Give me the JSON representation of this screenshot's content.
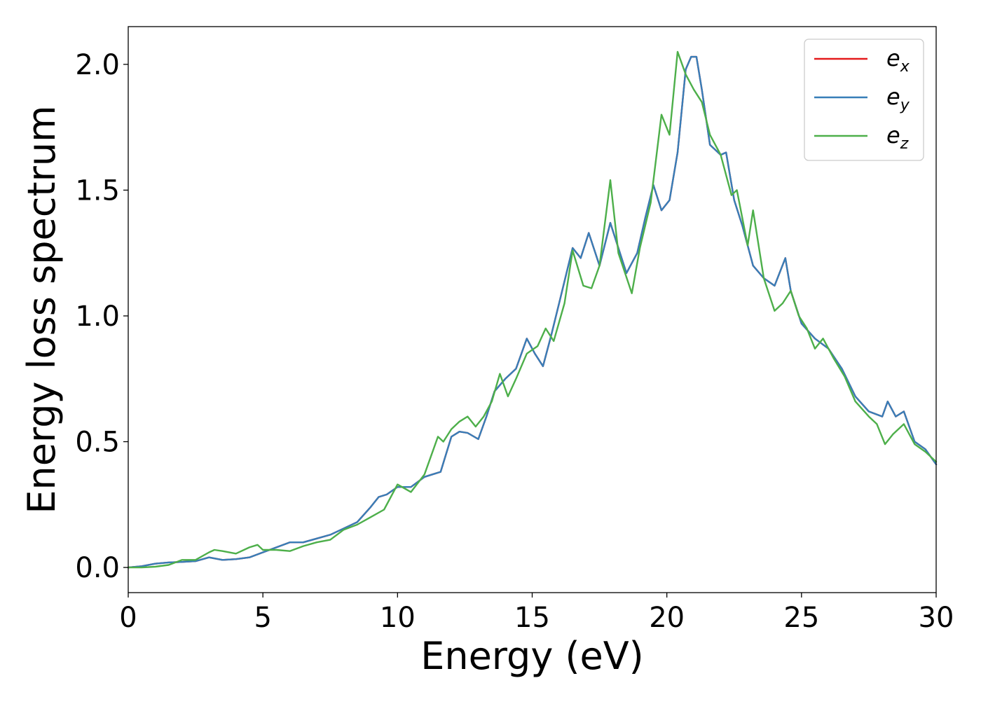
{
  "chart_data": {
    "type": "line",
    "title": "",
    "xlabel": "Energy (eV)",
    "ylabel": "Energy loss spectrum",
    "xlim": [
      0,
      30
    ],
    "ylim": [
      -0.1,
      2.15
    ],
    "xticks": [
      0,
      5,
      10,
      15,
      20,
      25,
      30
    ],
    "yticks": [
      0.0,
      0.5,
      1.0,
      1.5,
      2.0
    ],
    "xtick_labels": [
      "0",
      "5",
      "10",
      "15",
      "20",
      "25",
      "30"
    ],
    "ytick_labels": [
      "0.0",
      "0.5",
      "1.0",
      "1.5",
      "2.0"
    ],
    "grid": false,
    "legend_position": "top-right",
    "series": [
      {
        "name": "e_x",
        "legend_base": "e",
        "legend_sub": "x",
        "color": "#e41a1c",
        "x": [
          0,
          0.5,
          1,
          1.5,
          2,
          2.5,
          3,
          3.5,
          4,
          4.5,
          5,
          5.5,
          6,
          6.5,
          7,
          7.5,
          8,
          8.5,
          9,
          9.3,
          9.6,
          10,
          10.5,
          11,
          11.3,
          11.6,
          12,
          12.3,
          12.6,
          13,
          13.3,
          13.6,
          14,
          14.4,
          14.8,
          15.1,
          15.4,
          15.7,
          16,
          16.5,
          16.8,
          17.1,
          17.5,
          17.9,
          18.5,
          18.9,
          19.2,
          19.5,
          19.8,
          20.1,
          20.4,
          20.7,
          20.9,
          21.1,
          21.3,
          21.6,
          22,
          22.2,
          22.5,
          22.8,
          23.2,
          23.6,
          24,
          24.4,
          24.6,
          25,
          25.5,
          26,
          26.5,
          27,
          27.5,
          28,
          28.2,
          28.5,
          28.8,
          29.2,
          29.6,
          30
        ],
        "values": [
          0.0,
          0.005,
          0.015,
          0.02,
          0.022,
          0.025,
          0.04,
          0.03,
          0.033,
          0.04,
          0.06,
          0.08,
          0.1,
          0.1,
          0.115,
          0.13,
          0.155,
          0.18,
          0.24,
          0.28,
          0.29,
          0.32,
          0.32,
          0.36,
          0.37,
          0.38,
          0.52,
          0.54,
          0.535,
          0.51,
          0.6,
          0.7,
          0.75,
          0.79,
          0.91,
          0.85,
          0.8,
          0.92,
          1.05,
          1.27,
          1.23,
          1.33,
          1.2,
          1.37,
          1.17,
          1.25,
          1.39,
          1.52,
          1.42,
          1.46,
          1.65,
          1.98,
          2.03,
          2.03,
          1.9,
          1.68,
          1.64,
          1.65,
          1.46,
          1.36,
          1.2,
          1.15,
          1.12,
          1.23,
          1.1,
          0.97,
          0.91,
          0.87,
          0.79,
          0.68,
          0.62,
          0.6,
          0.66,
          0.6,
          0.62,
          0.5,
          0.47,
          0.41
        ]
      },
      {
        "name": "e_y",
        "legend_base": "e",
        "legend_sub": "y",
        "color": "#377eb8",
        "x": [
          0,
          0.5,
          1,
          1.5,
          2,
          2.5,
          3,
          3.5,
          4,
          4.5,
          5,
          5.5,
          6,
          6.5,
          7,
          7.5,
          8,
          8.5,
          9,
          9.3,
          9.6,
          10,
          10.5,
          11,
          11.3,
          11.6,
          12,
          12.3,
          12.6,
          13,
          13.3,
          13.6,
          14,
          14.4,
          14.8,
          15.1,
          15.4,
          15.7,
          16,
          16.5,
          16.8,
          17.1,
          17.5,
          17.9,
          18.5,
          18.9,
          19.2,
          19.5,
          19.8,
          20.1,
          20.4,
          20.7,
          20.9,
          21.1,
          21.3,
          21.6,
          22,
          22.2,
          22.5,
          22.8,
          23.2,
          23.6,
          24,
          24.4,
          24.6,
          25,
          25.5,
          26,
          26.5,
          27,
          27.5,
          28,
          28.2,
          28.5,
          28.8,
          29.2,
          29.6,
          30
        ],
        "values": [
          0.0,
          0.005,
          0.015,
          0.02,
          0.022,
          0.025,
          0.04,
          0.03,
          0.033,
          0.04,
          0.06,
          0.08,
          0.1,
          0.1,
          0.115,
          0.13,
          0.155,
          0.18,
          0.24,
          0.28,
          0.29,
          0.32,
          0.32,
          0.36,
          0.37,
          0.38,
          0.52,
          0.54,
          0.535,
          0.51,
          0.6,
          0.7,
          0.75,
          0.79,
          0.91,
          0.85,
          0.8,
          0.92,
          1.05,
          1.27,
          1.23,
          1.33,
          1.2,
          1.37,
          1.17,
          1.25,
          1.39,
          1.52,
          1.42,
          1.46,
          1.65,
          1.98,
          2.03,
          2.03,
          1.9,
          1.68,
          1.64,
          1.65,
          1.46,
          1.36,
          1.2,
          1.15,
          1.12,
          1.23,
          1.1,
          0.97,
          0.91,
          0.87,
          0.79,
          0.68,
          0.62,
          0.6,
          0.66,
          0.6,
          0.62,
          0.5,
          0.47,
          0.41
        ]
      },
      {
        "name": "e_z",
        "legend_base": "e",
        "legend_sub": "z",
        "color": "#4daf4a",
        "x": [
          0,
          0.5,
          1,
          1.5,
          2,
          2.5,
          3,
          3.2,
          3.5,
          4,
          4.5,
          4.8,
          5,
          5.5,
          6,
          6.5,
          7,
          7.5,
          8,
          8.5,
          9,
          9.5,
          10,
          10.5,
          11,
          11.5,
          11.7,
          12,
          12.3,
          12.6,
          12.9,
          13.2,
          13.5,
          13.8,
          14.1,
          14.4,
          14.8,
          15.2,
          15.5,
          15.8,
          16.2,
          16.5,
          16.9,
          17.2,
          17.5,
          17.9,
          18.2,
          18.7,
          19.0,
          19.4,
          19.8,
          20.1,
          20.4,
          20.7,
          21.0,
          21.3,
          21.6,
          22,
          22.4,
          22.6,
          23.0,
          23.2,
          23.6,
          24,
          24.3,
          24.6,
          24.9,
          25.2,
          25.5,
          25.8,
          26.2,
          26.6,
          27,
          27.5,
          27.8,
          28.1,
          28.4,
          28.8,
          29.2,
          29.6,
          30
        ],
        "values": [
          0.0,
          0.0,
          0.003,
          0.01,
          0.03,
          0.03,
          0.06,
          0.07,
          0.065,
          0.055,
          0.08,
          0.09,
          0.07,
          0.07,
          0.065,
          0.085,
          0.1,
          0.11,
          0.15,
          0.17,
          0.2,
          0.23,
          0.33,
          0.3,
          0.37,
          0.52,
          0.5,
          0.55,
          0.58,
          0.6,
          0.56,
          0.6,
          0.66,
          0.77,
          0.68,
          0.75,
          0.85,
          0.88,
          0.95,
          0.9,
          1.05,
          1.26,
          1.12,
          1.11,
          1.2,
          1.54,
          1.25,
          1.09,
          1.27,
          1.45,
          1.8,
          1.72,
          2.05,
          1.96,
          1.9,
          1.85,
          1.72,
          1.64,
          1.48,
          1.5,
          1.28,
          1.42,
          1.15,
          1.02,
          1.05,
          1.1,
          1.0,
          0.95,
          0.87,
          0.91,
          0.83,
          0.76,
          0.66,
          0.6,
          0.57,
          0.49,
          0.53,
          0.57,
          0.49,
          0.46,
          0.42
        ]
      }
    ]
  }
}
